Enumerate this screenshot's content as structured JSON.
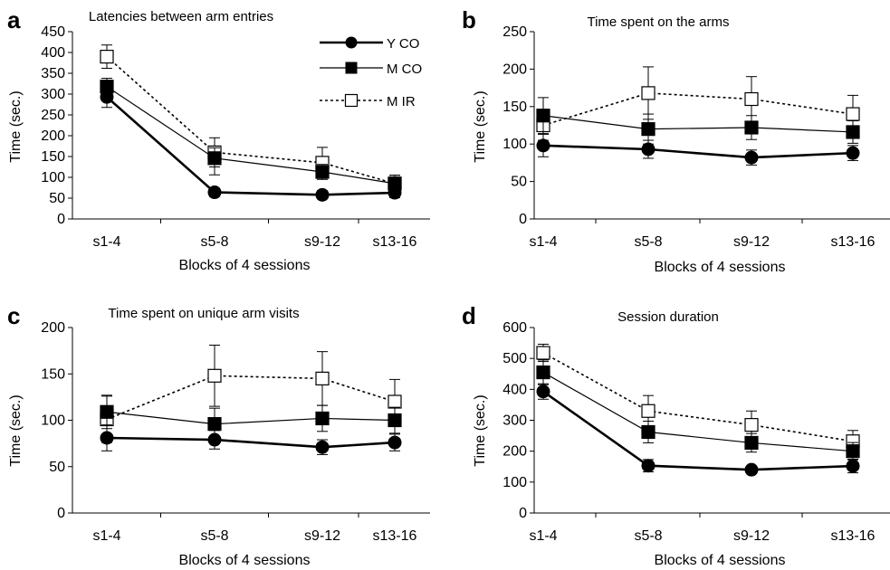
{
  "chart_data": [
    {
      "panel_label": "a",
      "type": "line",
      "title": "Latencies between arm entries",
      "xlabel": "Blocks of 4 sessions",
      "ylabel": "Time (sec.)",
      "categories": [
        "s1-4",
        "s5-8",
        "s9-12",
        "s13-16"
      ],
      "ylim": [
        0,
        450
      ],
      "yticks": [
        0,
        50,
        100,
        150,
        200,
        250,
        300,
        350,
        400,
        450
      ],
      "legend": "top-right",
      "series": [
        {
          "name": "Y CO",
          "values": [
            293,
            64,
            58,
            63
          ],
          "err_up": [
            25,
            10,
            10,
            12
          ],
          "err_down": [
            25,
            10,
            10,
            12
          ]
        },
        {
          "name": "M CO",
          "values": [
            318,
            146,
            113,
            85
          ],
          "err_up": [
            20,
            25,
            18,
            20
          ],
          "err_down": [
            20,
            40,
            18,
            20
          ]
        },
        {
          "name": "M IR",
          "values": [
            390,
            160,
            135,
            85
          ],
          "err_up": [
            28,
            35,
            37,
            20
          ],
          "err_down": [
            28,
            35,
            37,
            20
          ]
        }
      ]
    },
    {
      "panel_label": "b",
      "type": "line",
      "title": "Time spent on the arms",
      "xlabel": "Blocks of 4 sessions",
      "ylabel": "Time (sec.)",
      "categories": [
        "s1-4",
        "s5-8",
        "s9-12",
        "s13-16"
      ],
      "ylim": [
        0,
        250
      ],
      "yticks": [
        0,
        50,
        100,
        150,
        200,
        250
      ],
      "series": [
        {
          "name": "Y CO",
          "values": [
            98,
            93,
            82,
            88
          ],
          "err_up": [
            15,
            12,
            10,
            10
          ],
          "err_down": [
            15,
            12,
            10,
            10
          ]
        },
        {
          "name": "M CO",
          "values": [
            138,
            120,
            122,
            116
          ],
          "err_up": [
            24,
            20,
            16,
            15
          ],
          "err_down": [
            24,
            20,
            16,
            15
          ]
        },
        {
          "name": "M IR",
          "values": [
            125,
            168,
            160,
            140
          ],
          "err_up": [
            20,
            35,
            30,
            25
          ],
          "err_down": [
            20,
            35,
            30,
            25
          ]
        }
      ]
    },
    {
      "panel_label": "c",
      "type": "line",
      "title": "Time spent on unique arm visits",
      "xlabel": "Blocks of 4 sessions",
      "ylabel": "Time (sec.)",
      "categories": [
        "s1-4",
        "s5-8",
        "s9-12",
        "s13-16"
      ],
      "ylim": [
        0,
        200
      ],
      "yticks": [
        0,
        50,
        100,
        150,
        200
      ],
      "series": [
        {
          "name": "Y CO",
          "values": [
            81,
            79,
            71,
            76
          ],
          "err_up": [
            14,
            10,
            8,
            9
          ],
          "err_down": [
            14,
            10,
            8,
            9
          ]
        },
        {
          "name": "M CO",
          "values": [
            109,
            96,
            102,
            100
          ],
          "err_up": [
            18,
            17,
            14,
            14
          ],
          "err_down": [
            18,
            17,
            14,
            14
          ]
        },
        {
          "name": "M IR",
          "values": [
            101,
            148,
            145,
            120
          ],
          "err_up": [
            25,
            33,
            29,
            24
          ],
          "err_down": [
            25,
            33,
            29,
            24
          ]
        }
      ]
    },
    {
      "panel_label": "d",
      "type": "line",
      "title": "Session duration",
      "xlabel": "Blocks of 4 sessions",
      "ylabel": "Time (sec.)",
      "categories": [
        "s1-4",
        "s5-8",
        "s9-12",
        "s13-16"
      ],
      "ylim": [
        0,
        600
      ],
      "yticks": [
        0,
        100,
        200,
        300,
        400,
        500,
        600
      ],
      "series": [
        {
          "name": "Y CO",
          "values": [
            393,
            153,
            140,
            152
          ],
          "err_up": [
            25,
            20,
            12,
            22
          ],
          "err_down": [
            25,
            20,
            12,
            22
          ]
        },
        {
          "name": "M CO",
          "values": [
            455,
            262,
            227,
            200
          ],
          "err_up": [
            40,
            35,
            30,
            28
          ],
          "err_down": [
            40,
            35,
            30,
            28
          ]
        },
        {
          "name": "M IR",
          "values": [
            518,
            330,
            285,
            232
          ],
          "err_up": [
            28,
            50,
            45,
            35
          ],
          "err_down": [
            28,
            50,
            45,
            35
          ]
        }
      ]
    }
  ]
}
